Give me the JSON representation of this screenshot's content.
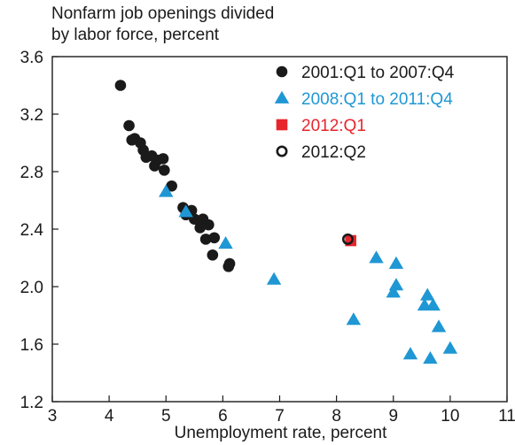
{
  "chart_data": {
    "type": "scatter",
    "ylabel_lines": [
      "Nonfarm job openings divided",
      "by labor force, percent"
    ],
    "xlabel": "Unemployment rate, percent",
    "xlim": [
      3,
      11
    ],
    "ylim": [
      1.2,
      3.6
    ],
    "x_ticks": [
      3,
      4,
      5,
      6,
      7,
      8,
      9,
      10,
      11
    ],
    "y_ticks": [
      1.2,
      1.6,
      2.0,
      2.4,
      2.8,
      3.2,
      3.6
    ],
    "y_tick_labels": [
      "1.2",
      "1.6",
      "2.0",
      "2.4",
      "2.8",
      "3.2",
      "3.6"
    ],
    "grid": false,
    "legend_position": "top-right",
    "series": [
      {
        "name": "2001:Q1 to 2007:Q4",
        "marker": "filled-circle",
        "color": "#1a1a1a",
        "points": [
          [
            4.2,
            3.4
          ],
          [
            4.35,
            3.12
          ],
          [
            4.4,
            3.02
          ],
          [
            4.45,
            3.03
          ],
          [
            4.55,
            3.0
          ],
          [
            4.6,
            2.95
          ],
          [
            4.65,
            2.9
          ],
          [
            4.75,
            2.91
          ],
          [
            4.8,
            2.84
          ],
          [
            4.85,
            2.88
          ],
          [
            4.95,
            2.89
          ],
          [
            4.97,
            2.81
          ],
          [
            5.1,
            2.7
          ],
          [
            5.3,
            2.55
          ],
          [
            5.35,
            2.5
          ],
          [
            5.45,
            2.53
          ],
          [
            5.5,
            2.47
          ],
          [
            5.6,
            2.41
          ],
          [
            5.65,
            2.47
          ],
          [
            5.7,
            2.33
          ],
          [
            5.75,
            2.43
          ],
          [
            5.82,
            2.22
          ],
          [
            5.85,
            2.34
          ],
          [
            6.1,
            2.14
          ],
          [
            6.12,
            2.16
          ]
        ]
      },
      {
        "name": "2008:Q1 to 2011:Q4",
        "marker": "filled-triangle",
        "color": "#1f97d4",
        "points": [
          [
            5.0,
            2.66
          ],
          [
            5.35,
            2.52
          ],
          [
            6.05,
            2.3
          ],
          [
            6.9,
            2.05
          ],
          [
            8.3,
            1.77
          ],
          [
            8.7,
            2.2
          ],
          [
            9.05,
            2.16
          ],
          [
            9.05,
            2.01
          ],
          [
            9.0,
            1.96
          ],
          [
            9.3,
            1.53
          ],
          [
            9.55,
            1.87
          ],
          [
            9.6,
            1.94
          ],
          [
            9.65,
            1.5
          ],
          [
            9.7,
            1.87
          ],
          [
            9.8,
            1.72
          ],
          [
            10.0,
            1.57
          ]
        ]
      },
      {
        "name": "2012:Q1",
        "marker": "filled-square",
        "color": "#e8252c",
        "points": [
          [
            8.25,
            2.32
          ]
        ]
      },
      {
        "name": "2012:Q2",
        "marker": "open-circle",
        "color": "#1a1a1a",
        "points": [
          [
            8.2,
            2.33
          ]
        ]
      }
    ]
  }
}
